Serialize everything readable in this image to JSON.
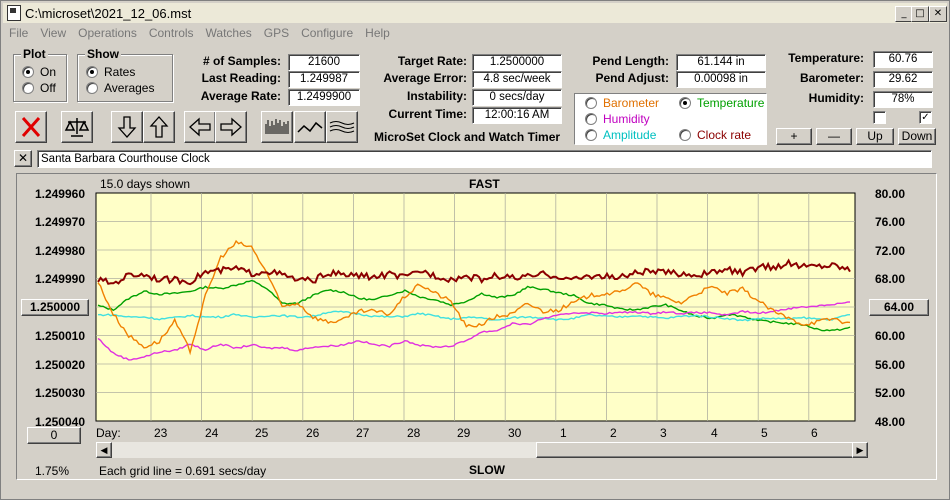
{
  "window": {
    "title": "C:\\microset\\2021_12_06.mst",
    "min": "_",
    "max": "□",
    "close": "✕"
  },
  "menu": [
    "File",
    "View",
    "Operations",
    "Controls",
    "Watches",
    "GPS",
    "Configure",
    "Help"
  ],
  "plot_group": {
    "title": "Plot",
    "on_label": "On",
    "off_label": "Off",
    "selected": "On"
  },
  "show_group": {
    "title": "Show",
    "rates_label": "Rates",
    "averages_label": "Averages",
    "selected": "Rates"
  },
  "stats": {
    "samples_label": "# of Samples:",
    "samples_value": "21600",
    "last_reading_label": "Last Reading:",
    "last_reading_value": "1.249987",
    "average_rate_label": "Average Rate:",
    "average_rate_value": "1.2499900",
    "target_rate_label": "Target Rate:",
    "target_rate_value": "1.2500000",
    "average_error_label": "Average Error:",
    "average_error_value": "4.8 sec/week",
    "instability_label": "Instability:",
    "instability_value": "0 secs/day",
    "current_time_label": "Current Time:",
    "current_time_value": "12:00:16 AM",
    "pend_length_label": "Pend Length:",
    "pend_length_value": "61.144 in",
    "pend_adjust_label": "Pend Adjust:",
    "pend_adjust_value": "0.00098 in",
    "temperature_label": "Temperature:",
    "temperature_value": "60.76",
    "barometer_label": "Barometer:",
    "barometer_value": "29.62",
    "humidity_label": "Humidity:",
    "humidity_value": "78%"
  },
  "app_caption": "MicroSet Clock and Watch Timer",
  "sensor_select": {
    "selected": "Temperature",
    "options": [
      {
        "label": "Barometer",
        "color": "#e07000"
      },
      {
        "label": "Temperature",
        "color": "#00a000"
      },
      {
        "label": "Humidity",
        "color": "#c000c0"
      },
      {
        "label": "Clock rate",
        "color": "#8b0000"
      },
      {
        "label": "Amplitude",
        "color": "#00c0c0"
      }
    ]
  },
  "scale_buttons": {
    "plus": "+",
    "minus": "—",
    "up": "Up",
    "down": "Down"
  },
  "clock_name": "Santa Barbara Courthouse Clock",
  "clear_name_button": "✕",
  "chart_data": {
    "type": "line",
    "top_left_text": "15.0 days shown",
    "top_label": "FAST",
    "bottom_label": "SLOW",
    "footer_left": "1.75%",
    "footer_text": "Each grid line = 0.691 secs/day",
    "left_value_button": "0",
    "right_value_button": "64.00",
    "left_axis": {
      "ticks": [
        "1.249960",
        "1.249970",
        "1.249980",
        "1.249990",
        "1.250000",
        "1.250010",
        "1.250020",
        "1.250030",
        "1.250040"
      ],
      "lim": [
        1.25004,
        1.24996
      ]
    },
    "right_axis": {
      "ticks": [
        "80.00",
        "76.00",
        "72.00",
        "68.00",
        "64.00",
        "60.00",
        "56.00",
        "52.00",
        "48.00"
      ],
      "lim": [
        48,
        80
      ]
    },
    "x_label": "Day:",
    "x_ticks": [
      "23",
      "24",
      "25",
      "26",
      "27",
      "28",
      "29",
      "30",
      "1",
      "2",
      "3",
      "4",
      "5",
      "6"
    ],
    "grid": true,
    "series": [
      {
        "color": "#00a000",
        "values": [
          64.2,
          63.6,
          65.2,
          66.2,
          65.8,
          65.9,
          66.2,
          66.8,
          66.6,
          67.1,
          67.7,
          66.6,
          64.5,
          64.5,
          65.6,
          66.4,
          66.1,
          65.2,
          65.0,
          65.7,
          66.3,
          65.4,
          65.0,
          64.3,
          64.8,
          65.9,
          65.3,
          65.6,
          66.8,
          66.5,
          66.0,
          65.6,
          64.5,
          64.3,
          63.7,
          63.6,
          64.0,
          64.3,
          63.5,
          62.7,
          62.4,
          63.0,
          62.7,
          62.1,
          61.9,
          61.7,
          61.5,
          60.8,
          60.7,
          61.1
        ]
      },
      {
        "color": "#40e0e0",
        "values": [
          62.9,
          62.9,
          62.6,
          62.6,
          62.3,
          62.5,
          62.8,
          62.6,
          62.6,
          63.0,
          62.5,
          62.8,
          62.8,
          62.6,
          62.7,
          63.3,
          63.3,
          63.0,
          62.7,
          62.6,
          62.7,
          63.1,
          62.7,
          62.3,
          62.5,
          62.5,
          62.1,
          62.5,
          62.6,
          62.5,
          62.2,
          62.4,
          62.9,
          62.7,
          62.6,
          62.8,
          62.6,
          62.4,
          62.7,
          62.8,
          62.6,
          62.4,
          62.1,
          62.4,
          62.4,
          62.3,
          62.5,
          62.3,
          62.3,
          63.0
        ]
      },
      {
        "color": "#e030e0",
        "values": [
          59.6,
          57.5,
          56.6,
          57.0,
          57.7,
          57.9,
          58.8,
          58.0,
          58.8,
          58.2,
          58.7,
          58.2,
          58.3,
          57.9,
          58.4,
          58.5,
          58.7,
          59.3,
          58.7,
          58.5,
          59.3,
          58.6,
          58.4,
          58.5,
          59.3,
          60.5,
          60.7,
          61.7,
          61.5,
          62.4,
          62.8,
          63.2,
          63.2,
          63.1,
          63.2,
          63.3,
          63.1,
          63.3,
          63.1,
          63.2,
          63.2,
          62.8,
          63.4,
          63.1,
          63.4,
          63.8,
          64.0,
          64.2,
          64.4,
          64.7
        ]
      },
      {
        "color": "#f08000",
        "values": [
          67.5,
          63.0,
          60.0,
          58.4,
          59.2,
          62.0,
          57.8,
          65.5,
          71.0,
          73.0,
          72.4,
          68.8,
          64.0,
          64.6,
          62.6,
          61.9,
          62.2,
          63.4,
          63.4,
          63.0,
          65.5,
          67.2,
          65.9,
          64.8,
          61.2,
          61.6,
          62.7,
          63.0,
          64.5,
          63.4,
          63.6,
          64.6,
          65.6,
          65.9,
          66.0,
          67.5,
          65.9,
          65.2,
          64.6,
          65.9,
          66.8,
          65.9,
          66.5,
          64.9,
          63.4,
          62.4,
          61.6,
          62.0,
          62.4,
          61.6
        ]
      },
      {
        "color": "#8b0000",
        "values": [
          67.8,
          67.3,
          68.5,
          68.6,
          67.9,
          67.8,
          67.6,
          68.9,
          69.1,
          69.4,
          68.7,
          69.1,
          68.5,
          67.8,
          67.7,
          68.8,
          68.5,
          68.4,
          68.2,
          68.6,
          68.1,
          69.1,
          68.4,
          67.9,
          68.3,
          67.9,
          68.4,
          68.1,
          68.2,
          68.6,
          68.3,
          67.8,
          68.4,
          68.3,
          68.1,
          68.8,
          69.0,
          68.8,
          68.7,
          68.5,
          68.8,
          69.3,
          68.7,
          69.6,
          69.6,
          70.1,
          69.7,
          69.8,
          69.9,
          69.2
        ]
      }
    ]
  }
}
